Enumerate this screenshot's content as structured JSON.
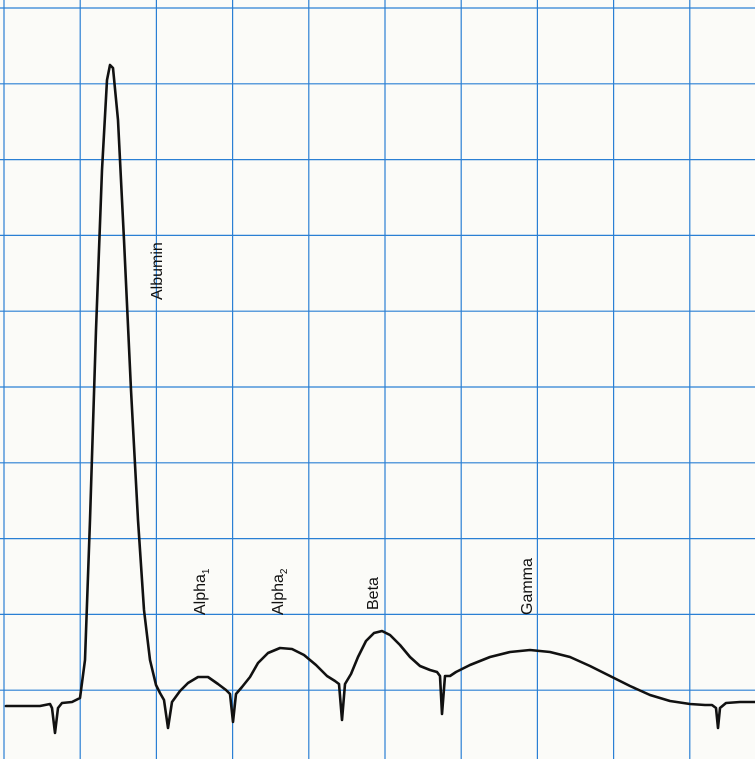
{
  "chart_data": {
    "type": "line",
    "title": "",
    "xlabel": "",
    "ylabel": "",
    "grid": true,
    "grid_color": "#2a7fd4",
    "line_color": "#111111",
    "grid_columns": 10,
    "grid_rows": 9,
    "fractions": [
      {
        "name": "Albumin",
        "sub": ""
      },
      {
        "name": "Alpha",
        "sub": "1"
      },
      {
        "name": "Alpha",
        "sub": "2"
      },
      {
        "name": "Beta",
        "sub": ""
      },
      {
        "name": "Gamma",
        "sub": ""
      }
    ],
    "markers": [
      "start",
      "albumin-alpha1",
      "alpha1-alpha2",
      "alpha2-beta",
      "beta-gamma",
      "end"
    ]
  }
}
